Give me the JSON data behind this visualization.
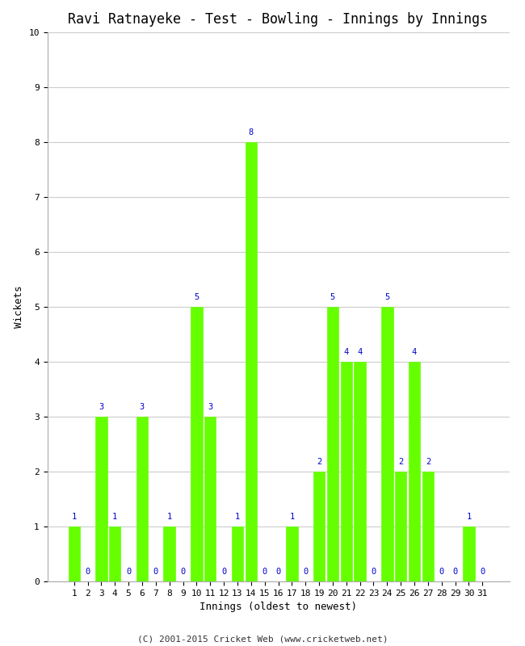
{
  "title": "Ravi Ratnayeke - Test - Bowling - Innings by Innings",
  "xlabel": "Innings (oldest to newest)",
  "ylabel": "Wickets",
  "footer": "(C) 2001-2015 Cricket Web (www.cricketweb.net)",
  "innings": [
    1,
    2,
    3,
    4,
    5,
    6,
    7,
    8,
    9,
    10,
    11,
    12,
    13,
    14,
    15,
    16,
    17,
    18,
    19,
    20,
    21,
    22,
    23,
    24,
    25,
    26,
    27,
    28,
    29,
    30,
    31
  ],
  "wickets": [
    1,
    0,
    3,
    1,
    0,
    3,
    0,
    1,
    0,
    5,
    3,
    0,
    1,
    8,
    0,
    0,
    1,
    0,
    2,
    5,
    4,
    4,
    0,
    5,
    2,
    4,
    2,
    0,
    0,
    1,
    0
  ],
  "bar_color": "#66ff00",
  "bar_edge_color": "#66ff00",
  "label_color": "#0000cc",
  "background_color": "#ffffff",
  "grid_color": "#cccccc",
  "ylim": [
    0,
    10
  ],
  "yticks": [
    0,
    1,
    2,
    3,
    4,
    5,
    6,
    7,
    8,
    9,
    10
  ],
  "title_fontsize": 12,
  "label_fontsize": 9,
  "tick_fontsize": 8,
  "footer_fontsize": 8,
  "annotation_fontsize": 7.5
}
